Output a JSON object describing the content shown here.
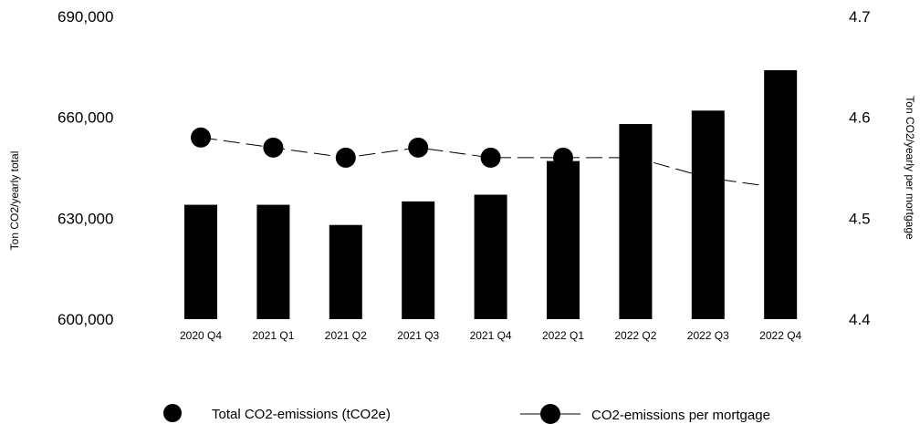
{
  "chart_data": {
    "type": "bar+line",
    "categories": [
      "2020 Q4",
      "2021 Q1",
      "2021 Q2",
      "2021 Q3",
      "2021 Q4",
      "2022 Q1",
      "2022 Q2",
      "2022 Q3",
      "2022 Q4"
    ],
    "series": [
      {
        "name": "Total CO2-emissions (tCO2e)",
        "kind": "bar",
        "axis": "left",
        "color": "#000000",
        "values": [
          634000,
          634000,
          628000,
          635000,
          637000,
          647000,
          658000,
          662000,
          674000
        ]
      },
      {
        "name": "CO2-emissions per mortgage",
        "kind": "line",
        "axis": "right",
        "color": "#000000",
        "line_style": "dashed",
        "values": [
          4.58,
          4.57,
          4.56,
          4.57,
          4.56,
          4.56,
          4.56,
          4.54,
          4.53
        ],
        "markers_visible": [
          true,
          true,
          true,
          true,
          true,
          true,
          false,
          false,
          false
        ]
      }
    ],
    "y_left": {
      "label": "Ton CO2/yearly total",
      "ylim": [
        600000,
        690000
      ],
      "ticks": [
        600000,
        630000,
        660000,
        690000
      ],
      "tick_labels": [
        "600,000",
        "630,000",
        "660,000",
        "690,000"
      ]
    },
    "y_right": {
      "label": "Ton CO2/yearly per mortgage",
      "ylim": [
        4.4,
        4.7
      ],
      "ticks": [
        4.4,
        4.5,
        4.6,
        4.7
      ],
      "tick_labels": [
        "4.4",
        "4.5",
        "4.6",
        "4.7"
      ]
    },
    "grid": false,
    "legend": {
      "placement": "bottom",
      "entries": [
        "Total CO2-emissions (tCO2e)",
        "CO2-emissions per mortgage"
      ]
    }
  }
}
